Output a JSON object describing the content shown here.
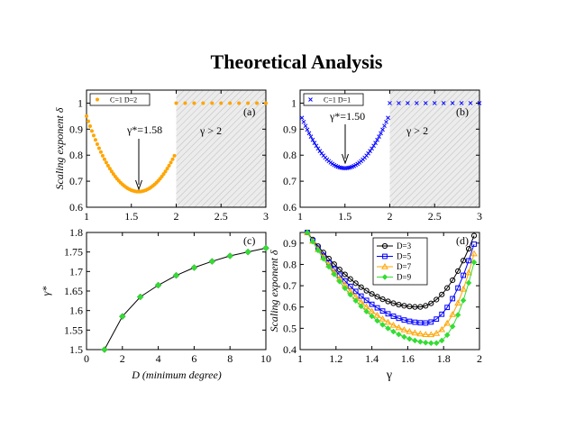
{
  "figure": {
    "title": "Theoretical Analysis"
  },
  "chart_data": [
    {
      "panel": "(a)",
      "type": "scatter",
      "legend": {
        "label": "C=1 D=2",
        "marker": "circle",
        "color": "#FFA500",
        "placement": "top-left"
      },
      "xlim": [
        1,
        3
      ],
      "ylim": [
        0.6,
        1.05
      ],
      "xticks": [
        1,
        1.5,
        2,
        2.5,
        3
      ],
      "yticks": [
        0.6,
        0.7,
        0.8,
        0.9,
        1
      ],
      "xtick_labels": [
        "1",
        "1.5",
        "2",
        "2.5",
        "3"
      ],
      "ytick_labels": [
        "0.6",
        "0.7",
        "0.8",
        "0.9",
        "1"
      ],
      "ylabel": "Scaling exponent δ",
      "minimum": {
        "x": 1.58,
        "y": 0.66
      },
      "shaded_region": [
        2,
        3
      ],
      "annotations": {
        "gamma_star": "γ*=1.58",
        "region": "γ > 2",
        "label": "(a)"
      },
      "curve": {
        "x_min": 1.0,
        "x_max": 1.98,
        "x_step": 0.02,
        "center": 1.58,
        "y_min": 0.66,
        "y_at_x1": 0.95
      },
      "flat": {
        "x": [
          2.0,
          2.1,
          2.2,
          2.3,
          2.4,
          2.5,
          2.6,
          2.7,
          2.8,
          2.9,
          3.0
        ],
        "y": 1.0
      }
    },
    {
      "panel": "(b)",
      "type": "scatter",
      "legend": {
        "label": "C=1 D=1",
        "marker": "x",
        "color": "#0000FF",
        "placement": "top-left"
      },
      "xlim": [
        1,
        3
      ],
      "ylim": [
        0.6,
        1.05
      ],
      "xticks": [
        1,
        1.5,
        2,
        2.5,
        3
      ],
      "yticks": [
        0.6,
        0.7,
        0.8,
        0.9,
        1
      ],
      "xtick_labels": [
        "1",
        "1.5",
        "2",
        "2.5",
        "3"
      ],
      "ytick_labels": [
        "0.6",
        "0.7",
        "0.8",
        "0.9",
        "1"
      ],
      "minimum": {
        "x": 1.5,
        "y": 0.75
      },
      "shaded_region": [
        2,
        3
      ],
      "annotations": {
        "gamma_star": "γ*=1.50",
        "region": "γ > 2",
        "label": "(b)"
      },
      "curve": {
        "x_min": 1.02,
        "x_max": 1.98,
        "x_step": 0.02,
        "center": 1.5,
        "y_min": 0.75,
        "y_at_x1": 0.96
      },
      "flat": {
        "x": [
          2.0,
          2.1,
          2.2,
          2.3,
          2.4,
          2.5,
          2.6,
          2.7,
          2.8,
          2.9,
          3.0
        ],
        "y": 1.0
      }
    },
    {
      "panel": "(c)",
      "type": "line",
      "xlim": [
        0,
        10
      ],
      "ylim": [
        1.5,
        1.8
      ],
      "xticks": [
        0,
        2,
        4,
        6,
        8,
        10
      ],
      "yticks": [
        1.5,
        1.55,
        1.6,
        1.65,
        1.7,
        1.75,
        1.8
      ],
      "xtick_labels": [
        "0",
        "2",
        "4",
        "6",
        "8",
        "10"
      ],
      "ytick_labels": [
        "1.5",
        "1.55",
        "1.6",
        "1.65",
        "1.7",
        "1.75",
        "1.8"
      ],
      "xlabel": "D (minimum degree)",
      "ylabel": "γ*",
      "marker_color": "#33DD33",
      "annotations": {
        "label": "(c)"
      },
      "x": [
        1,
        2,
        3,
        4,
        5,
        6,
        7,
        8,
        9,
        10
      ],
      "y": [
        1.5,
        1.585,
        1.635,
        1.665,
        1.69,
        1.71,
        1.726,
        1.74,
        1.75,
        1.76
      ]
    },
    {
      "panel": "(d)",
      "type": "line",
      "xlim": [
        1,
        2
      ],
      "ylim": [
        0.4,
        0.95
      ],
      "xticks": [
        1,
        1.2,
        1.4,
        1.6,
        1.8,
        2
      ],
      "yticks": [
        0.4,
        0.5,
        0.6,
        0.7,
        0.8,
        0.9
      ],
      "xtick_labels": [
        "1",
        "1.2",
        "1.4",
        "1.6",
        "1.8",
        "2"
      ],
      "ytick_labels": [
        "0.4",
        "0.5",
        "0.6",
        "0.7",
        "0.8",
        "0.9"
      ],
      "xlabel": "γ",
      "ylabel": "Scaling exponent δ",
      "annotations": {
        "label": "(d)"
      },
      "legend_placement": "top-right",
      "x_min": 1.04,
      "x_max": 1.97,
      "x_step": 0.03,
      "series": [
        {
          "name": "D=3",
          "color": "#000000",
          "marker": "circle",
          "center": 1.66,
          "y_min": 0.6,
          "y_left": 0.95,
          "y_right": 0.935
        },
        {
          "name": "D=5",
          "color": "#0000FF",
          "marker": "square",
          "center": 1.7,
          "y_min": 0.525,
          "y_left": 0.95,
          "y_right": 0.895
        },
        {
          "name": "D=7",
          "color": "#FFA500",
          "marker": "triangle",
          "center": 1.73,
          "y_min": 0.47,
          "y_left": 0.95,
          "y_right": 0.85
        },
        {
          "name": "D=9",
          "color": "#33DD33",
          "marker": "diamond",
          "center": 1.75,
          "y_min": 0.43,
          "y_left": 0.95,
          "y_right": 0.81
        }
      ]
    }
  ]
}
